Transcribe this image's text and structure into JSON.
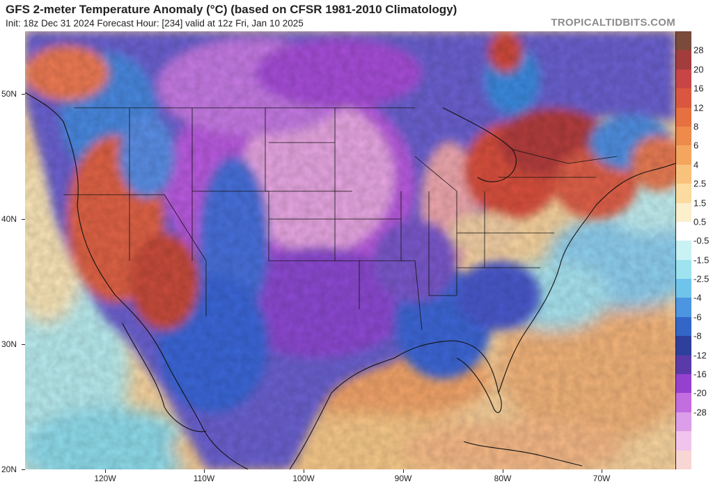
{
  "header": {
    "title": "GFS 2-meter Temperature Anomaly (°C) (based on CFSR 1981-2010 Climatology)",
    "subtitle": "Init: 18z Dec 31 2024   Forecast Hour: [234]   valid at 12z Fri, Jan 10 2025",
    "brand": "TROPICALTIDBITS.COM"
  },
  "axes": {
    "lat_labels": [
      "50N",
      "40N",
      "30N",
      "20N"
    ],
    "lon_labels": [
      "120W",
      "110W",
      "100W",
      "90W",
      "80W",
      "70W"
    ]
  },
  "colorbar": {
    "labels": [
      "28",
      "20",
      "16",
      "12",
      "8",
      "6",
      "4",
      "2.5",
      "1.5",
      "0.5",
      "-0.5",
      "-1.5",
      "-2.5",
      "-4",
      "-6",
      "-8",
      "-12",
      "-16",
      "-20",
      "-28"
    ],
    "colors": [
      "#7a4a3a",
      "#a33d3d",
      "#c74545",
      "#d9573f",
      "#e6703f",
      "#ee8a4a",
      "#f4a65e",
      "#f8c27c",
      "#fbdb9f",
      "#fcefcc",
      "#ffffff",
      "#c8f2f4",
      "#9ee3ef",
      "#6fc4ec",
      "#4c95e0",
      "#3466c8",
      "#2e3f9c",
      "#5a3aa8",
      "#9640d0",
      "#c26de0",
      "#dc9ee8",
      "#f0c4ec",
      "#f7d6d3"
    ]
  },
  "map": {
    "colors": {
      "ocean_warm": "#f6c896",
      "ocean_cool": "#b8ecf0",
      "cold_purple": "#8a4ad0",
      "cold_pink": "#e29ae0",
      "cold_blue": "#3a5ed0",
      "warm_red": "#d9503c",
      "border": "#111111"
    }
  }
}
